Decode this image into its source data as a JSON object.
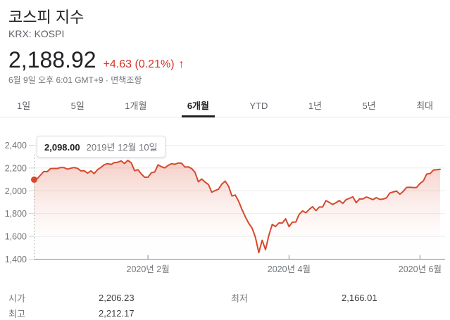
{
  "header": {
    "title": "코스피 지수",
    "exchange": "KRX: KOSPI",
    "price": "2,188.92",
    "change": "+4.63 (0.21%)",
    "change_arrow": "↑",
    "timestamp": "6월 9일 오후 6:01 GMT+9",
    "separator": "·",
    "disclaimer": "면책조항"
  },
  "tabs": [
    {
      "key": "1d",
      "label": "1일",
      "active": false
    },
    {
      "key": "5d",
      "label": "5일",
      "active": false
    },
    {
      "key": "1m",
      "label": "1개월",
      "active": false
    },
    {
      "key": "6m",
      "label": "6개월",
      "active": true
    },
    {
      "key": "ytd",
      "label": "YTD",
      "active": false
    },
    {
      "key": "1y",
      "label": "1년",
      "active": false
    },
    {
      "key": "5y",
      "label": "5년",
      "active": false
    },
    {
      "key": "max",
      "label": "최대",
      "active": false
    }
  ],
  "colors": {
    "accent_red": "#d93025",
    "line": "#d6492c",
    "fill_top": "rgba(217,73,44,0.26)",
    "grid": "#ececec",
    "axis": "#80868b",
    "tick_label": "#70757a",
    "marker_line": "#9aa0a6",
    "active_tab_underline": "#202124"
  },
  "chart_data": {
    "type": "area",
    "title": "",
    "xlabel": "",
    "ylabel": "",
    "ylim": [
      1400,
      2400
    ],
    "grid": true,
    "y_ticks": [
      2400,
      2200,
      2000,
      1800,
      1600,
      1400
    ],
    "y_tick_labels": [
      "2,400",
      "2,200",
      "2,000",
      "1,800",
      "1,600",
      "1,400"
    ],
    "x_ticks": [
      {
        "index": 34,
        "label": "2020년 2월"
      },
      {
        "index": 76,
        "label": "2020년 4월"
      },
      {
        "index": 115,
        "label": "2020년 6월"
      }
    ],
    "marker": {
      "index": 0,
      "value": 2098.0,
      "label_value": "2,098.00",
      "label_date": "2019년 12월 10일"
    },
    "values": [
      2098.0,
      2105.6,
      2137.4,
      2170.3,
      2168.2,
      2195.7,
      2196.6,
      2196.6,
      2204.2,
      2203.7,
      2190.1,
      2197.9,
      2204.2,
      2197.7,
      2175.2,
      2176.5,
      2155.1,
      2175.5,
      2151.3,
      2186.5,
      2206.4,
      2229.3,
      2238.9,
      2230.6,
      2248.1,
      2250.6,
      2262.6,
      2239.7,
      2267.2,
      2246.1,
      2176.7,
      2185.3,
      2148.0,
      2119.0,
      2118.9,
      2157.9,
      2165.6,
      2227.9,
      2211.9,
      2201.1,
      2223.1,
      2238.4,
      2233.0,
      2243.6,
      2242.2,
      2208.9,
      2210.3,
      2195.5,
      2162.8,
      2079.0,
      2103.6,
      2076.8,
      2054.9,
      1987.0,
      2002.5,
      2014.2,
      2059.3,
      2085.3,
      2040.2,
      1954.8,
      1962.9,
      1908.3,
      1834.3,
      1771.4,
      1714.9,
      1672.4,
      1591.2,
      1457.6,
      1566.2,
      1482.5,
      1610.0,
      1704.8,
      1686.2,
      1717.7,
      1717.1,
      1754.6,
      1685.5,
      1724.9,
      1725.4,
      1791.9,
      1823.6,
      1807.1,
      1836.2,
      1860.7,
      1825.8,
      1857.1,
      1857.1,
      1914.5,
      1898.4,
      1879.4,
      1896.2,
      1914.7,
      1889.0,
      1922.8,
      1934.1,
      1947.6,
      1895.4,
      1928.8,
      1928.6,
      1945.8,
      1935.4,
      1922.2,
      1940.4,
      1925.0,
      1927.3,
      1937.1,
      1980.6,
      1989.6,
      1998.3,
      1970.1,
      1994.6,
      2029.8,
      2031.2,
      2028.5,
      2029.6,
      2065.1,
      2087.2,
      2147.0,
      2151.2,
      2181.9,
      2184.3,
      2188.9
    ]
  },
  "stats": {
    "open_label": "시가",
    "open_value": "2,206.23",
    "high_label": "최고",
    "high_value": "2,212.17",
    "low_label": "최저",
    "low_value": "2,166.01"
  }
}
